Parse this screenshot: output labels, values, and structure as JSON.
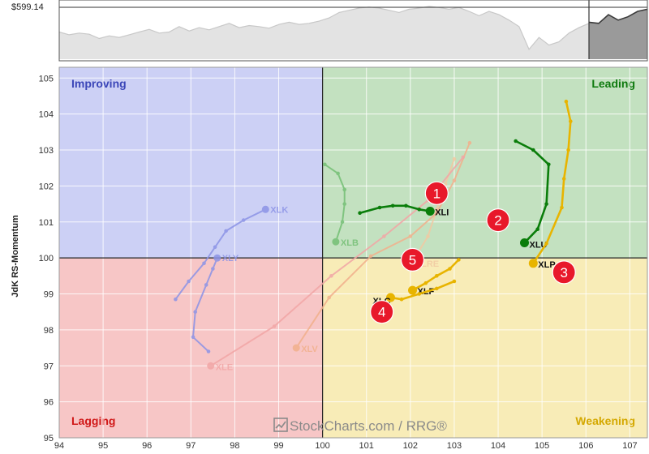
{
  "price_panel": {
    "label": "$599.14",
    "series_main": [
      0.5,
      0.55,
      0.52,
      0.54,
      0.62,
      0.57,
      0.6,
      0.55,
      0.5,
      0.45,
      0.52,
      0.5,
      0.4,
      0.48,
      0.42,
      0.46,
      0.4,
      0.34,
      0.42,
      0.38,
      0.4,
      0.43,
      0.36,
      0.32,
      0.36,
      0.34,
      0.3,
      0.24,
      0.14,
      0.1,
      0.06,
      0.04,
      0.06,
      0.1,
      0.14,
      0.08,
      0.06,
      0.03,
      0.05,
      0.08,
      0.05,
      0.12,
      0.2,
      0.12,
      0.18,
      0.28,
      0.4,
      0.82,
      0.6,
      0.74,
      0.68,
      0.52,
      0.42,
      0.34
    ],
    "series_recent": [
      0.32,
      0.34,
      0.18,
      0.28,
      0.22,
      0.12,
      0.08
    ],
    "colors": {
      "fill": "#e3e3e3",
      "line": "#c8c8c8",
      "recent_fill": "#9a9a9a",
      "recent_line": "#3a3a3a"
    }
  },
  "chart_data": {
    "type": "scatter",
    "title": "",
    "xlabel": "",
    "ylabel": "JdK RS-Momentum",
    "xlim": [
      94,
      107.4
    ],
    "ylim": [
      95,
      105.3
    ],
    "x_ticks": [
      "94",
      "95",
      "96",
      "97",
      "98",
      "99",
      "100",
      "101",
      "102",
      "103",
      "104",
      "105",
      "106",
      "107"
    ],
    "y_ticks": [
      "95",
      "96",
      "97",
      "98",
      "99",
      "100",
      "101",
      "102",
      "103",
      "104",
      "105"
    ],
    "grid": true,
    "center": [
      100,
      100
    ],
    "quadrants": [
      {
        "name": "Improving",
        "label_color": "#3b46b8",
        "fill": "#ccd0f5",
        "position": "top-left"
      },
      {
        "name": "Leading",
        "label_color": "#0e7a0e",
        "fill": "#c3e1c0",
        "position": "top-right"
      },
      {
        "name": "Lagging",
        "label_color": "#d01818",
        "fill": "#f7c6c6",
        "position": "bottom-left"
      },
      {
        "name": "Weakening",
        "label_color": "#d4a800",
        "fill": "#f8ecb7",
        "position": "bottom-right"
      }
    ],
    "series": [
      {
        "name": "XLI",
        "color": "#0a7d0a",
        "faded": false,
        "points": [
          [
            100.85,
            101.25
          ],
          [
            101.3,
            101.4
          ],
          [
            101.6,
            101.45
          ],
          [
            101.9,
            101.45
          ],
          [
            102.2,
            101.35
          ],
          [
            102.45,
            101.3
          ]
        ]
      },
      {
        "name": "XLU",
        "color": "#0a7d0a",
        "faded": false,
        "points": [
          [
            104.4,
            103.25
          ],
          [
            104.8,
            103.0
          ],
          [
            105.15,
            102.6
          ],
          [
            105.1,
            101.5
          ],
          [
            104.9,
            100.8
          ],
          [
            104.6,
            100.42
          ]
        ]
      },
      {
        "name": "XLP",
        "color": "#e8b400",
        "faded": false,
        "points": [
          [
            105.55,
            104.35
          ],
          [
            105.65,
            103.8
          ],
          [
            105.6,
            103.0
          ],
          [
            105.5,
            102.2
          ],
          [
            105.45,
            101.4
          ],
          [
            105.1,
            100.4
          ],
          [
            104.8,
            99.85
          ]
        ]
      },
      {
        "name": "XLF",
        "color": "#e8b400",
        "faded": false,
        "points": [
          [
            103.1,
            99.95
          ],
          [
            102.9,
            99.7
          ],
          [
            102.6,
            99.5
          ],
          [
            102.35,
            99.3
          ],
          [
            102.05,
            99.1
          ]
        ]
      },
      {
        "name": "XLC",
        "color": "#e8b400",
        "faded": false,
        "points": [
          [
            103.0,
            99.35
          ],
          [
            102.6,
            99.15
          ],
          [
            102.2,
            99.0
          ],
          [
            101.8,
            98.85
          ],
          [
            101.55,
            98.9
          ]
        ]
      },
      {
        "name": "XLK",
        "color": "#8c93e6",
        "faded": true,
        "points": [
          [
            96.65,
            98.85
          ],
          [
            96.95,
            99.35
          ],
          [
            97.3,
            99.85
          ],
          [
            97.55,
            100.3
          ],
          [
            97.8,
            100.75
          ],
          [
            98.2,
            101.05
          ],
          [
            98.7,
            101.35
          ]
        ]
      },
      {
        "name": "XLY",
        "color": "#8c93e6",
        "faded": true,
        "points": [
          [
            97.4,
            97.4
          ],
          [
            97.05,
            97.8
          ],
          [
            97.1,
            98.5
          ],
          [
            97.35,
            99.25
          ],
          [
            97.5,
            99.7
          ],
          [
            97.6,
            100.0
          ]
        ]
      },
      {
        "name": "XLB",
        "color": "#74bf74",
        "faded": true,
        "points": [
          [
            100.05,
            102.6
          ],
          [
            100.35,
            102.35
          ],
          [
            100.5,
            101.9
          ],
          [
            100.5,
            101.5
          ],
          [
            100.45,
            101.0
          ],
          [
            100.3,
            100.45
          ]
        ]
      },
      {
        "name": "XLRE",
        "color": "#f2c9a2",
        "faded": true,
        "points": [
          [
            103.0,
            102.75
          ],
          [
            102.8,
            102.05
          ],
          [
            102.6,
            101.35
          ],
          [
            102.4,
            100.6
          ],
          [
            102.15,
            100.1
          ],
          [
            102.0,
            99.85
          ]
        ]
      },
      {
        "name": "XLV",
        "color": "#f2b08c",
        "faded": true,
        "points": [
          [
            103.35,
            103.2
          ],
          [
            103.0,
            102.15
          ],
          [
            102.6,
            101.25
          ],
          [
            102.0,
            100.6
          ],
          [
            101.1,
            100.05
          ],
          [
            100.15,
            98.9
          ],
          [
            99.4,
            97.5
          ]
        ]
      },
      {
        "name": "XLE",
        "color": "#f2a6a6",
        "faded": true,
        "points": [
          [
            103.2,
            102.8
          ],
          [
            102.4,
            101.6
          ],
          [
            101.4,
            100.6
          ],
          [
            100.2,
            99.5
          ],
          [
            98.9,
            98.1
          ],
          [
            97.45,
            97.0
          ]
        ]
      }
    ],
    "badges": [
      {
        "num": "1",
        "x": 102.6,
        "y": 101.8
      },
      {
        "num": "2",
        "x": 104.0,
        "y": 101.05
      },
      {
        "num": "3",
        "x": 105.5,
        "y": 99.6
      },
      {
        "num": "4",
        "x": 101.35,
        "y": 98.5
      },
      {
        "num": "5",
        "x": 102.05,
        "y": 99.95
      }
    ],
    "badge_color": "#e8182a"
  },
  "watermark": {
    "text": "StockCharts.com / RRG®"
  }
}
